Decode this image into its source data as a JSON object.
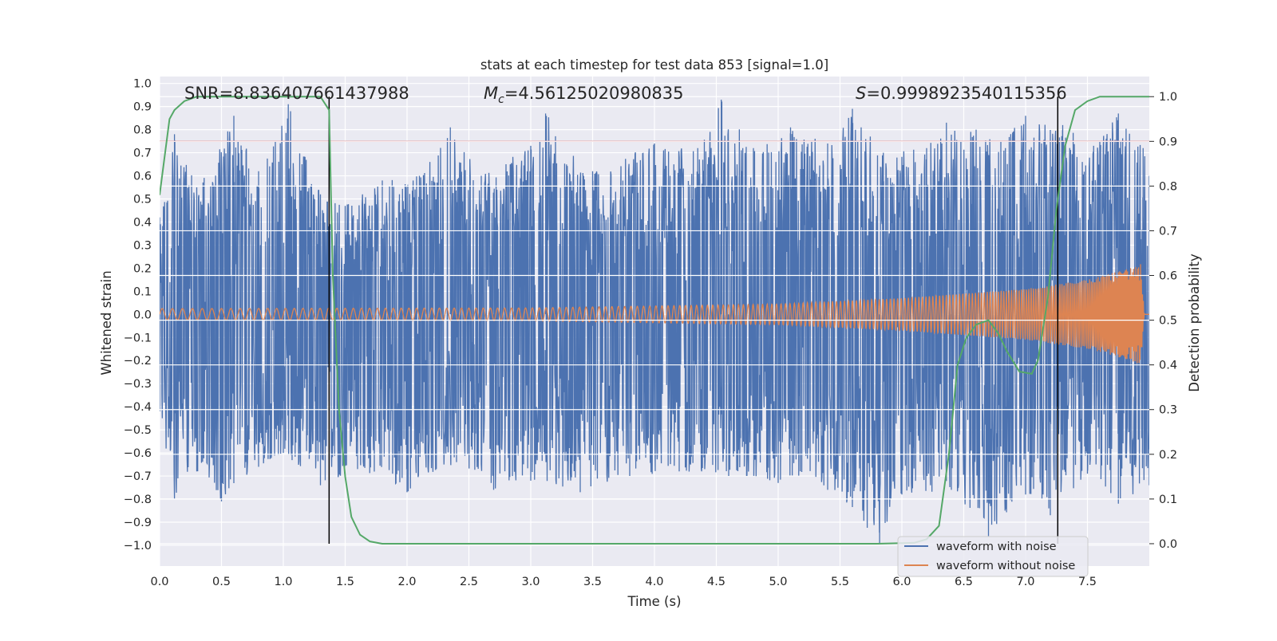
{
  "chart_data": {
    "type": "line",
    "title": "stats at each timestep for test data 853 [signal=1.0]",
    "xlabel": "Time (s)",
    "ylabel": "Whitened strain",
    "y2label": "Detection probability",
    "xlim": [
      0.0,
      8.0
    ],
    "ylim": [
      -1.09,
      1.03
    ],
    "y2lim": [
      -0.05,
      1.045
    ],
    "xticks": [
      "0.0",
      "0.5",
      "1.0",
      "1.5",
      "2.0",
      "2.5",
      "3.0",
      "3.5",
      "4.0",
      "4.5",
      "5.0",
      "5.5",
      "6.0",
      "6.5",
      "7.0",
      "7.5"
    ],
    "yticks": [
      "1.0",
      "0.9",
      "0.8",
      "0.7",
      "0.6",
      "0.5",
      "0.4",
      "0.3",
      "0.2",
      "0.1",
      "0.0",
      "−0.1",
      "−0.2",
      "−0.3",
      "−0.4",
      "−0.5",
      "−0.6",
      "−0.7",
      "−0.8",
      "−0.9",
      "−1.0"
    ],
    "y2ticks": [
      "1.0",
      "0.9",
      "0.8",
      "0.7",
      "0.6",
      "0.5",
      "0.4",
      "0.3",
      "0.2",
      "0.1",
      "0.0"
    ],
    "annotations": {
      "snr": "SNR=8.836407661437988",
      "mc_symbol": "M",
      "mc_sub": "c",
      "mc_value": "=4.56125020980835",
      "s_symbol": "S",
      "s_value": "=0.9998923540115356"
    },
    "threshold": 0.9,
    "vlines": [
      1.37,
      7.26
    ],
    "series": [
      {
        "name": "waveform with noise",
        "color": "#4c72b0",
        "envelope_upper": [
          [
            0.0,
            0.42
          ],
          [
            0.12,
            0.78
          ],
          [
            0.3,
            0.55
          ],
          [
            0.6,
            0.86
          ],
          [
            0.8,
            0.62
          ],
          [
            1.04,
            0.91
          ],
          [
            1.3,
            0.52
          ],
          [
            1.5,
            0.47
          ],
          [
            1.8,
            0.58
          ],
          [
            2.1,
            0.6
          ],
          [
            2.35,
            0.81
          ],
          [
            2.6,
            0.6
          ],
          [
            3.0,
            0.73
          ],
          [
            3.12,
            0.87
          ],
          [
            3.5,
            0.62
          ],
          [
            4.0,
            0.74
          ],
          [
            4.35,
            0.72
          ],
          [
            4.54,
            0.93
          ],
          [
            4.8,
            0.72
          ],
          [
            5.1,
            0.81
          ],
          [
            5.4,
            0.74
          ],
          [
            5.6,
            0.89
          ],
          [
            5.85,
            0.7
          ],
          [
            6.2,
            0.72
          ],
          [
            6.36,
            0.83
          ],
          [
            6.6,
            0.8
          ],
          [
            6.8,
            0.75
          ],
          [
            7.0,
            0.86
          ],
          [
            7.3,
            0.82
          ],
          [
            7.55,
            0.73
          ],
          [
            7.75,
            0.87
          ],
          [
            7.95,
            0.72
          ],
          [
            8.0,
            0.6
          ]
        ],
        "envelope_lower": [
          [
            0.0,
            -0.42
          ],
          [
            0.12,
            -0.8
          ],
          [
            0.3,
            -0.68
          ],
          [
            0.5,
            -0.81
          ],
          [
            0.8,
            -0.66
          ],
          [
            1.0,
            -0.6
          ],
          [
            1.3,
            -0.74
          ],
          [
            1.6,
            -0.67
          ],
          [
            2.0,
            -0.77
          ],
          [
            2.4,
            -0.64
          ],
          [
            2.7,
            -0.76
          ],
          [
            3.0,
            -0.72
          ],
          [
            3.4,
            -0.77
          ],
          [
            3.8,
            -0.7
          ],
          [
            4.2,
            -0.68
          ],
          [
            4.6,
            -0.7
          ],
          [
            5.0,
            -0.73
          ],
          [
            5.4,
            -0.76
          ],
          [
            5.82,
            -0.99
          ],
          [
            6.0,
            -0.78
          ],
          [
            6.4,
            -0.76
          ],
          [
            6.7,
            -0.96
          ],
          [
            7.0,
            -0.78
          ],
          [
            7.2,
            -0.87
          ],
          [
            7.5,
            -0.69
          ],
          [
            7.75,
            -0.82
          ],
          [
            8.0,
            -0.74
          ]
        ]
      },
      {
        "name": "waveform without noise",
        "color": "#dd8452",
        "amplitude": [
          [
            0.0,
            0.025
          ],
          [
            3.0,
            0.028
          ],
          [
            5.0,
            0.045
          ],
          [
            6.0,
            0.07
          ],
          [
            7.0,
            0.11
          ],
          [
            7.5,
            0.15
          ],
          [
            7.85,
            0.2
          ],
          [
            7.93,
            0.22
          ],
          [
            7.96,
            0.0
          ],
          [
            8.0,
            0.0
          ]
        ],
        "freq": [
          [
            0.0,
            12
          ],
          [
            4.0,
            20
          ],
          [
            6.5,
            38
          ],
          [
            7.5,
            65
          ],
          [
            7.92,
            130
          ]
        ]
      },
      {
        "name": "detection probability",
        "color": "#55a868",
        "axis": "y2",
        "x": [
          0.0,
          0.08,
          0.12,
          0.2,
          0.3,
          0.5,
          0.8,
          1.0,
          1.2,
          1.3,
          1.37,
          1.4,
          1.45,
          1.5,
          1.55,
          1.62,
          1.7,
          1.8,
          2.0,
          3.0,
          4.0,
          5.0,
          5.8,
          6.1,
          6.2,
          6.3,
          6.38,
          6.45,
          6.52,
          6.6,
          6.7,
          6.78,
          6.85,
          6.95,
          7.05,
          7.1,
          7.18,
          7.25,
          7.32,
          7.4,
          7.5,
          7.6,
          7.7,
          7.8,
          7.9,
          8.0
        ],
        "y": [
          0.78,
          0.95,
          0.97,
          0.99,
          1.0,
          1.0,
          1.0,
          1.0,
          1.0,
          1.0,
          0.97,
          0.6,
          0.3,
          0.15,
          0.06,
          0.02,
          0.005,
          0.0,
          0.0,
          0.0,
          0.0,
          0.0,
          0.0,
          0.002,
          0.01,
          0.04,
          0.2,
          0.4,
          0.46,
          0.49,
          0.5,
          0.47,
          0.43,
          0.385,
          0.38,
          0.41,
          0.55,
          0.75,
          0.89,
          0.97,
          0.99,
          1.0,
          1.0,
          1.0,
          1.0,
          1.0
        ]
      }
    ],
    "legend": {
      "position": "lower-right",
      "entries": [
        "waveform with noise",
        "waveform without noise"
      ]
    },
    "colors": {
      "background": "#eaeaf2",
      "grid": "#ffffff",
      "threshold": "#c44e52",
      "vline": "#000000"
    }
  }
}
